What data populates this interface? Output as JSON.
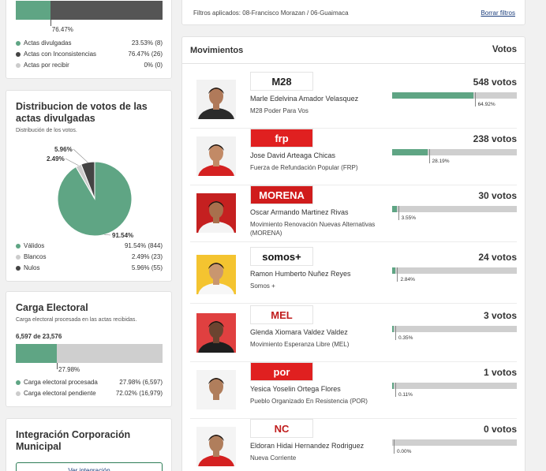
{
  "actas": {
    "bar_pct_label": "76.47%",
    "divulgadas_fraction": 0.2353,
    "legend": [
      {
        "label": "Actas divulgadas",
        "value": "23.53% (8)",
        "color": "#5fa584"
      },
      {
        "label": "Actas con Inconsistencias",
        "value": "76.47% (26)",
        "color": "#444444"
      },
      {
        "label": "Actas por recibir",
        "value": "0% (0)",
        "color": "#cccccc"
      }
    ]
  },
  "distribucion": {
    "title": "Distribucion de votos de las actas divulgadas",
    "subtitle": "Distribución de los votos.",
    "chart_data": {
      "type": "pie",
      "slices": [
        {
          "label": "Válidos",
          "value": 91.54,
          "count": 844,
          "color": "#5fa584",
          "text": "91.54% (844)",
          "callout": "91.54%"
        },
        {
          "label": "Blancos",
          "value": 2.49,
          "count": 23,
          "color": "#cccccc",
          "text": "2.49% (23)",
          "callout": "2.49%"
        },
        {
          "label": "Nulos",
          "value": 5.96,
          "count": 55,
          "color": "#444444",
          "text": "5.96% (55)",
          "callout": "5.96%"
        }
      ]
    }
  },
  "carga": {
    "title": "Carga Electoral",
    "subtitle": "Carga electoral procesada en las actas recibidas.",
    "summary": "6,597 de 23,576",
    "fraction": 0.2798,
    "bar_pct_label": "27.98%",
    "legend": [
      {
        "label": "Carga electoral procesada",
        "value": "27.98% (6,597)",
        "color": "#5fa584"
      },
      {
        "label": "Carga electoral pendiente",
        "value": "72.02% (16,979)",
        "color": "#cccccc"
      }
    ]
  },
  "integracion": {
    "title": "Integración Corporación Municipal",
    "button": "Ver integración"
  },
  "filters": {
    "label": "Filtros aplicados: 08-Francisco Morazan / 06-Guaimaca",
    "clear": "Borrar filtros"
  },
  "movimientos": {
    "title": "Movimientos",
    "votes_header": "Votos",
    "rows": [
      {
        "name": "Marle Edelvina Amador Velasquez",
        "party": "M28 Poder Para Vos",
        "logo": "M28",
        "logo_bg": "#ffffff",
        "logo_fg": "#222222",
        "votes": "548 votos",
        "pct": "64.92%",
        "fraction": 0.6492,
        "shirt": "#2b2b2b",
        "skin": "#b07a5a",
        "photo_bg": "#f2f2f2"
      },
      {
        "name": "Jose David Arteaga Chicas",
        "party": "Fuerza de Refundación Popular (FRP)",
        "logo": "frp",
        "logo_bg": "#e02020",
        "logo_fg": "#ffffff",
        "votes": "238 votos",
        "pct": "28.19%",
        "fraction": 0.2819,
        "shirt": "#d42121",
        "skin": "#c28a66",
        "photo_bg": "#f2f2f2"
      },
      {
        "name": "Oscar Armando Martinez Rivas",
        "party": "Movimiento Renovación Nuevas Alternativas (MORENA)",
        "logo": "MORENA",
        "logo_bg": "#d01c1c",
        "logo_fg": "#ffffff",
        "votes": "30 votos",
        "pct": "3.55%",
        "fraction": 0.0355,
        "shirt": "#f4f4f4",
        "skin": "#a8704d",
        "photo_bg": "#c52020"
      },
      {
        "name": "Ramon Humberto Nuñez Reyes",
        "party": "Somos +",
        "logo": "somos+",
        "logo_bg": "#ffffff",
        "logo_fg": "#111111",
        "votes": "24 votos",
        "pct": "2.84%",
        "fraction": 0.0284,
        "shirt": "#f7f7f7",
        "skin": "#c9966f",
        "photo_bg": "#f4c430"
      },
      {
        "name": "Glenda Xiomara Valdez Valdez",
        "party": "Movimiento Esperanza Libre (MEL)",
        "logo": "MEL",
        "logo_bg": "#ffffff",
        "logo_fg": "#c01c1c",
        "votes": "3 votos",
        "pct": "0.35%",
        "fraction": 0.0035,
        "shirt": "#1e1e1e",
        "skin": "#6b4430",
        "photo_bg": "#e04040"
      },
      {
        "name": "Yesica Yoselin Ortega Flores",
        "party": "Pueblo Organizado En Resistencia (POR)",
        "logo": "por",
        "logo_bg": "#e02020",
        "logo_fg": "#ffffff",
        "votes": "1 votos",
        "pct": "0.11%",
        "fraction": 0.0011,
        "shirt": "#f4f4f4",
        "skin": "#b07e5c",
        "photo_bg": "#f4f4f4"
      },
      {
        "name": "Eldoran Hidai Hernandez Rodriguez",
        "party": "Nueva Corriente",
        "logo": "NC",
        "logo_bg": "#ffffff",
        "logo_fg": "#c01c1c",
        "votes": "0 votos",
        "pct": "0.00%",
        "fraction": 0.0,
        "shirt": "#d42121",
        "skin": "#b07e5c",
        "photo_bg": "#f4f4f4"
      }
    ]
  }
}
